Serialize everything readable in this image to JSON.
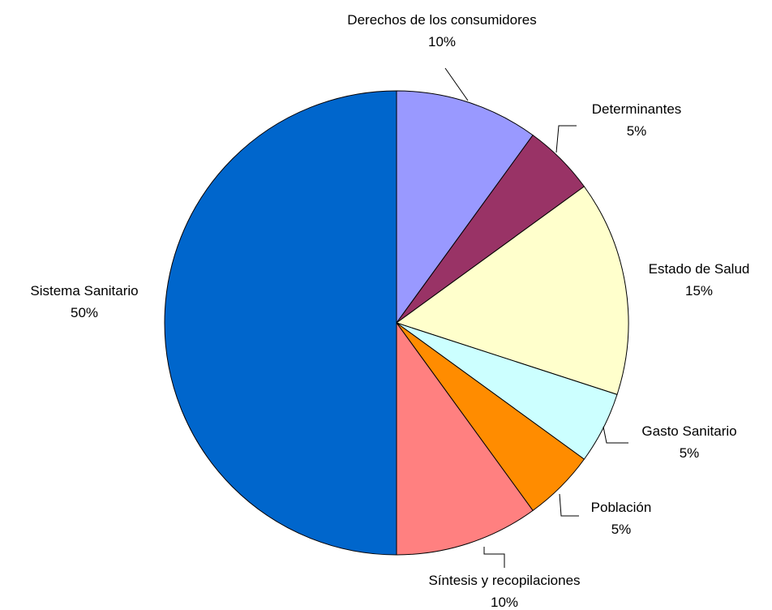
{
  "chart_data": {
    "type": "pie",
    "start": "12 o'clock",
    "direction": "clockwise",
    "slices": [
      {
        "label": "Derechos de los consumidores",
        "pct_label": "10%",
        "value": 10,
        "color": "#9999ff"
      },
      {
        "label": "Determinantes",
        "pct_label": "5%",
        "value": 5,
        "color": "#993366"
      },
      {
        "label": "Estado de Salud",
        "pct_label": "15%",
        "value": 15,
        "color": "#ffffcc"
      },
      {
        "label": "Gasto Sanitario",
        "pct_label": "5%",
        "value": 5,
        "color": "#ccffff"
      },
      {
        "label": "Población",
        "pct_label": "5%",
        "value": 5,
        "color": "#ff8c00"
      },
      {
        "label": "Síntesis y recopilaciones",
        "pct_label": "10%",
        "value": 10,
        "color": "#ff8080"
      },
      {
        "label": "Sistema Sanitario",
        "pct_label": "50%",
        "value": 50,
        "color": "#0066cc"
      }
    ]
  }
}
